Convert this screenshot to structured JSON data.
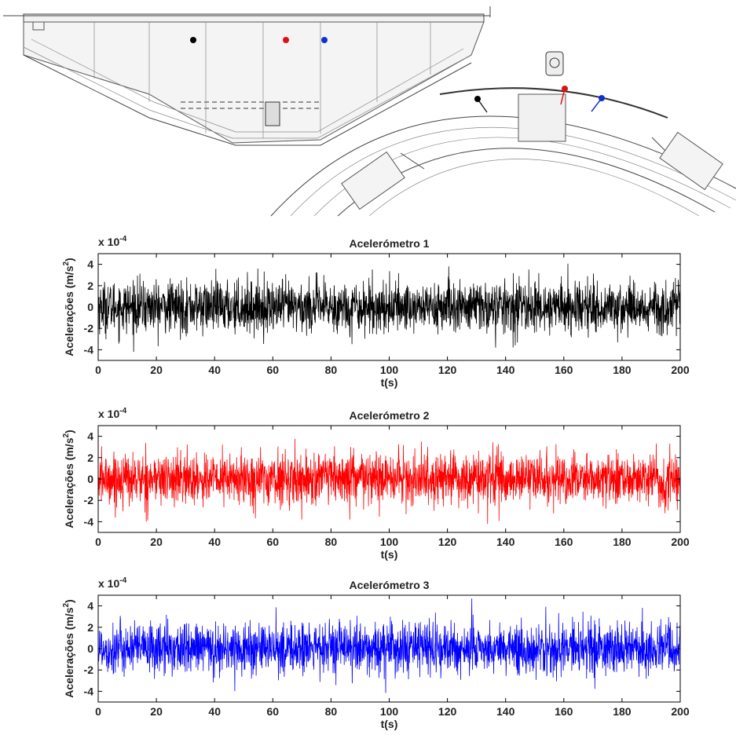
{
  "figure": {
    "sensor_colors": [
      "#000000",
      "#e01010",
      "#1030d0"
    ]
  },
  "chart_data": [
    {
      "type": "line",
      "title": "Acelerómetro 1",
      "xlabel": "t(s)",
      "ylabel_main": "Acelerações (m/s",
      "ylabel_sup": "2",
      "ylabel_end": ")",
      "scale_prefix": "x 10",
      "scale_exp": "-4",
      "xlim": [
        0,
        200
      ],
      "ylim": [
        -5,
        5
      ],
      "xticks": [
        "0",
        "20",
        "40",
        "60",
        "80",
        "100",
        "120",
        "140",
        "160",
        "180",
        "200"
      ],
      "yticks": [
        "4",
        "2",
        "0",
        "-2",
        "-4"
      ],
      "color": "#000000",
      "series": [
        {
          "x_range": [
            0,
            200
          ],
          "values_range": [
            -4.5,
            4.6
          ],
          "std": 1.2
        }
      ]
    },
    {
      "type": "line",
      "title": "Acelerómetro 2",
      "xlabel": "t(s)",
      "ylabel_main": "Acelerações (m/s",
      "ylabel_sup": "2",
      "ylabel_end": ")",
      "scale_prefix": "x 10",
      "scale_exp": "-4",
      "xlim": [
        0,
        200
      ],
      "ylim": [
        -5,
        5
      ],
      "xticks": [
        "0",
        "20",
        "40",
        "60",
        "80",
        "100",
        "120",
        "140",
        "160",
        "180",
        "200"
      ],
      "yticks": [
        "4",
        "2",
        "0",
        "-2",
        "-4"
      ],
      "color": "#ff0000",
      "series": [
        {
          "x_range": [
            0,
            200
          ],
          "values_range": [
            -4.2,
            4.4
          ],
          "std": 1.2
        }
      ]
    },
    {
      "type": "line",
      "title": "Acelerómetro 3",
      "xlabel": "t(s)",
      "ylabel_main": "Acelerações (m/s",
      "ylabel_sup": "2",
      "ylabel_end": ")",
      "scale_prefix": "x 10",
      "scale_exp": "-4",
      "xlim": [
        0,
        200
      ],
      "ylim": [
        -5,
        5
      ],
      "xticks": [
        "0",
        "20",
        "40",
        "60",
        "80",
        "100",
        "120",
        "140",
        "160",
        "180",
        "200"
      ],
      "yticks": [
        "4",
        "2",
        "0",
        "-2",
        "-4"
      ],
      "color": "#0000ff",
      "series": [
        {
          "x_range": [
            0,
            200
          ],
          "values_range": [
            -4.6,
            4.7
          ],
          "std": 1.2
        }
      ]
    }
  ]
}
